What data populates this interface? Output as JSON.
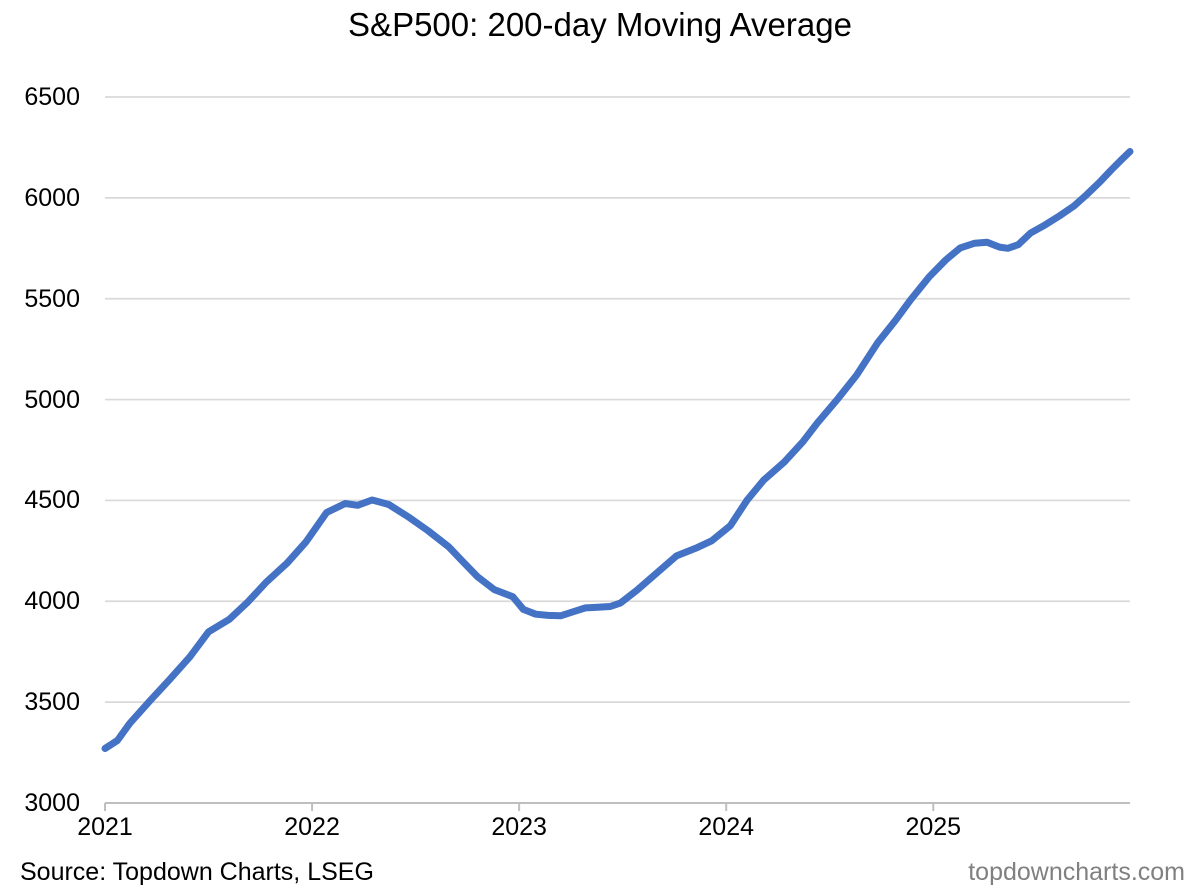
{
  "title": "S&P500: 200-day Moving Average",
  "footer": {
    "source": "Source: Topdown Charts, LSEG",
    "site": "topdowncharts.com"
  },
  "chart_data": {
    "type": "line",
    "title": "S&P500: 200-day Moving Average",
    "xlabel": "",
    "ylabel": "",
    "xlim": [
      2021,
      2025.95
    ],
    "ylim": [
      3000,
      6500
    ],
    "grid": "horizontal",
    "gridline_color": "#D9D9D9",
    "axis_color": "#BFBFBF",
    "legend": "none",
    "y_ticks": [
      3000,
      3500,
      4000,
      4500,
      5000,
      5500,
      6000,
      6500
    ],
    "x_ticks": [
      {
        "label": "2021",
        "value": 2021
      },
      {
        "label": "2022",
        "value": 2022
      },
      {
        "label": "2023",
        "value": 2023
      },
      {
        "label": "2024",
        "value": 2024
      },
      {
        "label": "2025",
        "value": 2025
      }
    ],
    "series": [
      {
        "name": "S&P500 200-day moving average",
        "color": "#4472C4",
        "stroke_width": 7,
        "points": [
          [
            2021.0,
            3270
          ],
          [
            2021.06,
            3310
          ],
          [
            2021.12,
            3395
          ],
          [
            2021.22,
            3510
          ],
          [
            2021.31,
            3610
          ],
          [
            2021.41,
            3725
          ],
          [
            2021.5,
            3848
          ],
          [
            2021.6,
            3910
          ],
          [
            2021.69,
            3997
          ],
          [
            2021.78,
            4096
          ],
          [
            2021.88,
            4190
          ],
          [
            2021.97,
            4294
          ],
          [
            2022.07,
            4440
          ],
          [
            2022.16,
            4485
          ],
          [
            2022.22,
            4476
          ],
          [
            2022.29,
            4502
          ],
          [
            2022.37,
            4480
          ],
          [
            2022.47,
            4415
          ],
          [
            2022.56,
            4350
          ],
          [
            2022.66,
            4270
          ],
          [
            2022.73,
            4195
          ],
          [
            2022.8,
            4121
          ],
          [
            2022.88,
            4058
          ],
          [
            2022.97,
            4022
          ],
          [
            2023.02,
            3960
          ],
          [
            2023.08,
            3936
          ],
          [
            2023.14,
            3930
          ],
          [
            2023.2,
            3928
          ],
          [
            2023.26,
            3948
          ],
          [
            2023.32,
            3967
          ],
          [
            2023.38,
            3970
          ],
          [
            2023.44,
            3974
          ],
          [
            2023.49,
            3992
          ],
          [
            2023.57,
            4056
          ],
          [
            2023.67,
            4145
          ],
          [
            2023.76,
            4225
          ],
          [
            2023.86,
            4266
          ],
          [
            2023.93,
            4300
          ],
          [
            2024.02,
            4375
          ],
          [
            2024.1,
            4500
          ],
          [
            2024.18,
            4600
          ],
          [
            2024.28,
            4690
          ],
          [
            2024.37,
            4790
          ],
          [
            2024.44,
            4884
          ],
          [
            2024.54,
            5005
          ],
          [
            2024.63,
            5122
          ],
          [
            2024.73,
            5280
          ],
          [
            2024.82,
            5396
          ],
          [
            2024.89,
            5494
          ],
          [
            2024.98,
            5608
          ],
          [
            2025.06,
            5692
          ],
          [
            2025.13,
            5752
          ],
          [
            2025.2,
            5775
          ],
          [
            2025.26,
            5780
          ],
          [
            2025.32,
            5756
          ],
          [
            2025.36,
            5750
          ],
          [
            2025.41,
            5768
          ],
          [
            2025.47,
            5826
          ],
          [
            2025.54,
            5866
          ],
          [
            2025.61,
            5911
          ],
          [
            2025.68,
            5960
          ],
          [
            2025.74,
            6015
          ],
          [
            2025.8,
            6074
          ],
          [
            2025.86,
            6139
          ],
          [
            2025.91,
            6190
          ],
          [
            2025.95,
            6230
          ]
        ]
      }
    ]
  }
}
